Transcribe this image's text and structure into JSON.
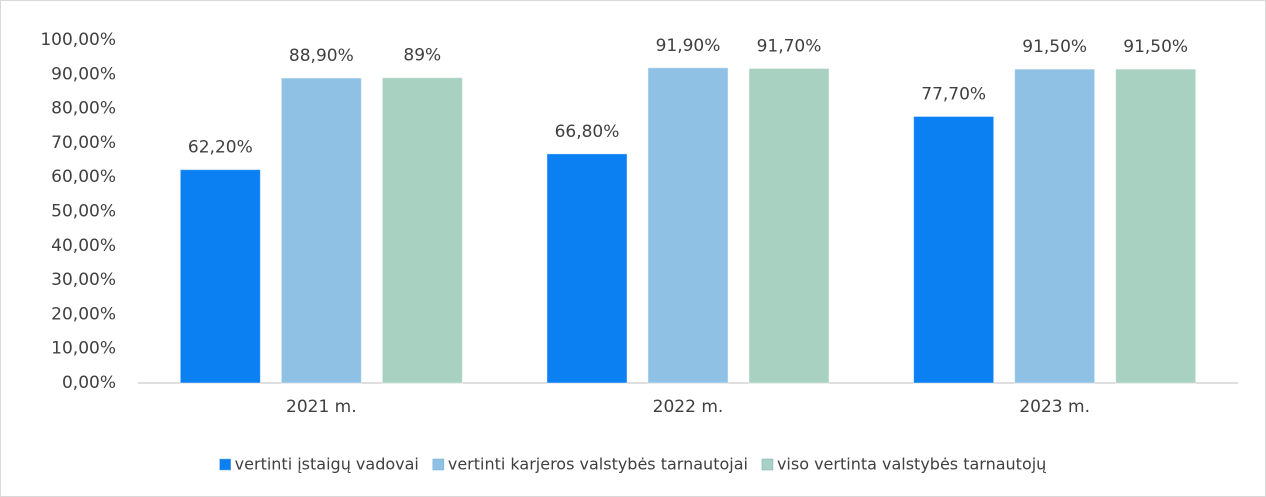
{
  "chart_data": {
    "type": "bar",
    "categories": [
      "2021 m.",
      "2022 m.",
      "2023 m."
    ],
    "series": [
      {
        "name": "vertinti įstaigų vadovai",
        "color": "#0b80f2",
        "values": [
          62.2,
          66.8,
          77.7
        ],
        "value_labels": [
          "62,20%",
          "66,80%",
          "77,70%"
        ]
      },
      {
        "name": "vertinti karjeros valstybės tarnautojai",
        "color": "#8fc1e5",
        "values": [
          88.9,
          91.9,
          91.5
        ],
        "value_labels": [
          "88,90%",
          "91,90%",
          "91,50%"
        ]
      },
      {
        "name": "viso vertinta valstybės tarnautojų",
        "color": "#a9d1c1",
        "values": [
          89,
          91.7,
          91.5
        ],
        "value_labels": [
          "89%",
          "91,70%",
          "91,50%"
        ]
      }
    ],
    "ylim": [
      0,
      100
    ],
    "yticks": [
      {
        "value": 0,
        "label": "0,00%"
      },
      {
        "value": 10,
        "label": "10,00%"
      },
      {
        "value": 20,
        "label": "20,00%"
      },
      {
        "value": 30,
        "label": "30,00%"
      },
      {
        "value": 40,
        "label": "40,00%"
      },
      {
        "value": 50,
        "label": "50,00%"
      },
      {
        "value": 60,
        "label": "60,00%"
      },
      {
        "value": 70,
        "label": "70,00%"
      },
      {
        "value": 80,
        "label": "80,00%"
      },
      {
        "value": 90,
        "label": "90,00%"
      },
      {
        "value": 100,
        "label": "100,00%"
      }
    ],
    "grid": false,
    "legend": "bottom"
  }
}
